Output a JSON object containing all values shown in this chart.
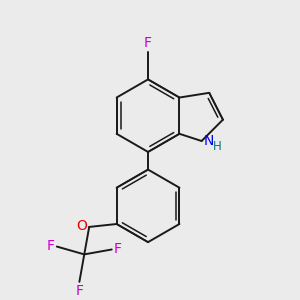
{
  "background_color": "#ebebeb",
  "bond_color": "#1a1a1a",
  "F_color": "#cc00cc",
  "N_color": "#0000ee",
  "O_color": "#ee0000",
  "H_color": "#007777",
  "figsize": [
    3.0,
    3.0
  ],
  "dpi": 100,
  "xlim": [
    0,
    300
  ],
  "ylim": [
    0,
    300
  ]
}
